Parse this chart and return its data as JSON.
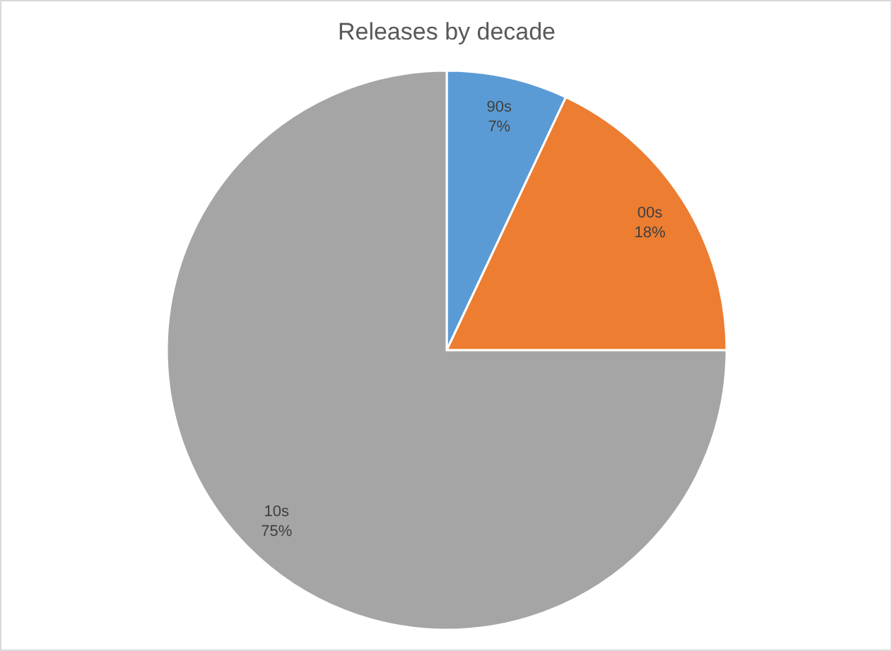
{
  "chart_data": {
    "type": "pie",
    "title": "Releases by decade",
    "categories": [
      "90s",
      "00s",
      "10s"
    ],
    "values": [
      7,
      18,
      75
    ],
    "value_labels": [
      "7%",
      "18%",
      "75%"
    ],
    "colors": [
      "#5b9bd5",
      "#ed7d31",
      "#a5a5a5"
    ],
    "legend": false
  }
}
